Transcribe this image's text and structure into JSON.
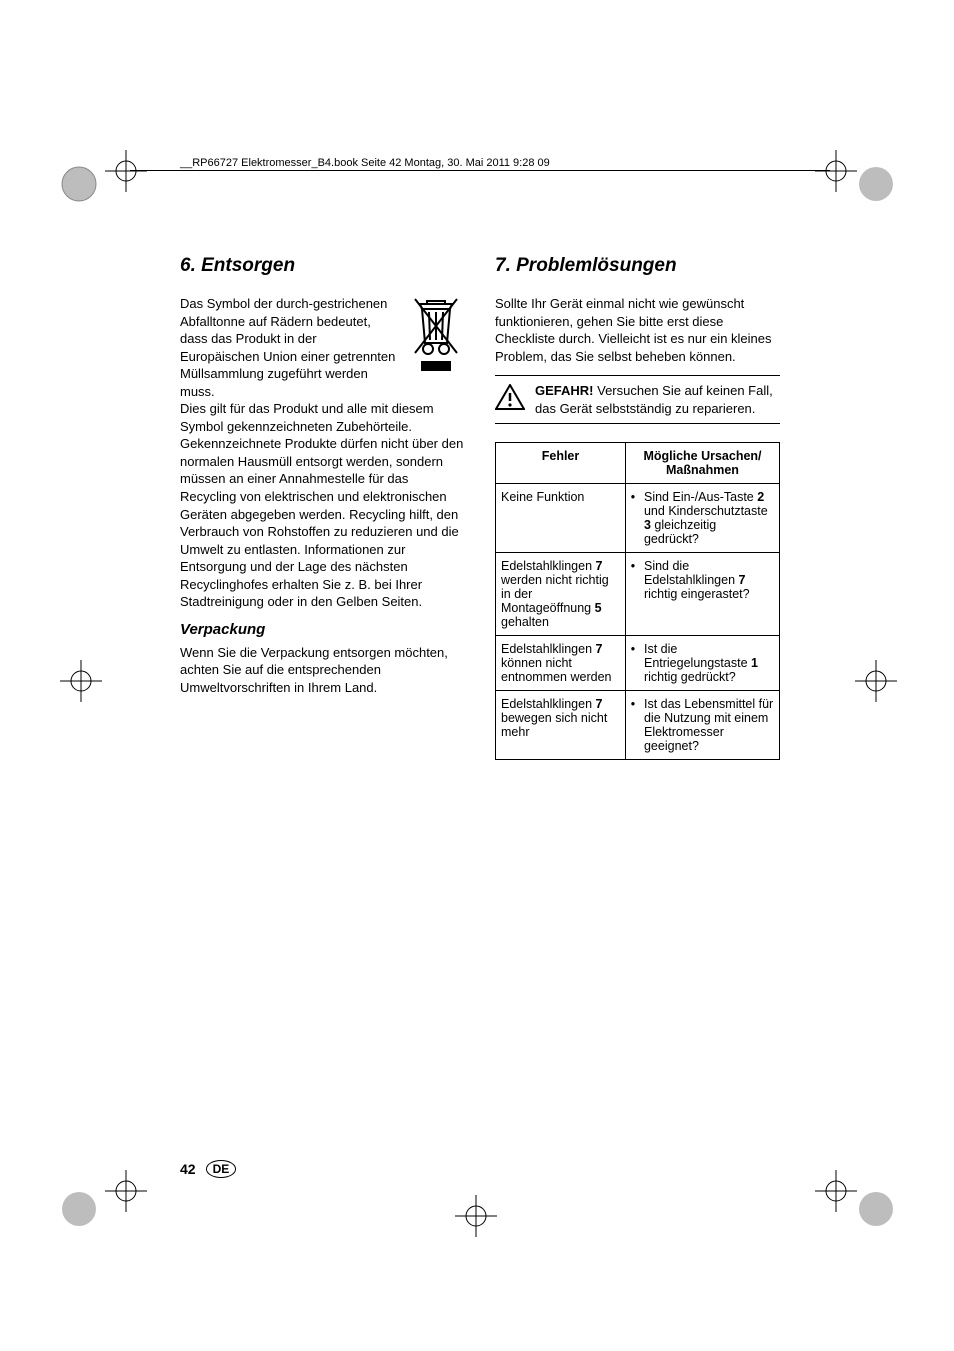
{
  "header": {
    "runhead": "__RP66727 Elektromesser_B4.book  Seite 42  Montag, 30. Mai 2011  9:28 09"
  },
  "left": {
    "heading": "6.   Entsorgen",
    "para1": "Das Symbol der durch-gestrichenen Abfalltonne auf Rädern bedeutet, dass das Produkt in der Europäischen Union einer getrennten Müllsammlung zugeführt werden muss.",
    "para2": "Dies gilt für das Produkt und alle mit diesem Symbol gekennzeichneten Zubehörteile. Gekennzeichnete Produkte dürfen nicht über den normalen Hausmüll entsorgt werden, sondern müssen an einer Annahmestelle für das Recycling von elektrischen und elektronischen Geräten abgegeben werden. Recycling hilft, den Verbrauch von Rohstoffen zu reduzieren und die Umwelt zu entlasten. Informationen zur Entsorgung und der Lage des nächsten Recyclinghofes erhalten Sie z. B. bei Ihrer Stadtreinigung oder in den Gelben Seiten.",
    "subheading": "Verpackung",
    "para3": "Wenn Sie die Verpackung entsorgen möchten, achten Sie auf die entsprechenden Umweltvorschriften in Ihrem Land."
  },
  "right": {
    "heading": "7.   Problemlösungen",
    "intro": "Sollte Ihr Gerät einmal nicht wie gewünscht funktionieren, gehen Sie bitte erst diese Checkliste durch. Vielleicht ist es nur ein kleines Problem, das Sie selbst beheben können.",
    "warning_bold": "GEFAHR!",
    "warning_text": " Versuchen Sie auf keinen Fall, das Gerät selbstständig zu reparieren.",
    "table": {
      "col1_header": "Fehler",
      "col2_header": "Mögliche Ursachen/\nMaßnahmen",
      "rows": [
        {
          "fault_pre": "Keine Funktion",
          "cause_parts": [
            "Sind Ein-/Aus-Taste ",
            "2",
            " und Kinderschutztaste ",
            "3",
            " gleichzeitig gedrückt?"
          ]
        },
        {
          "fault_parts": [
            "Edelstahlklingen ",
            "7",
            " werden nicht richtig in der Montageöffnung ",
            "5",
            " gehalten"
          ],
          "cause_parts": [
            "Sind die Edelstahlklingen ",
            "7",
            " richtig eingerastet?"
          ]
        },
        {
          "fault_parts": [
            "Edelstahlklingen ",
            "7",
            " können nicht entnommen werden"
          ],
          "cause_parts": [
            "Ist die Entriegelungstaste ",
            "1",
            " richtig gedrückt?"
          ]
        },
        {
          "fault_parts": [
            "Edelstahlklingen ",
            "7",
            " bewegen sich nicht mehr"
          ],
          "cause_parts": [
            "Ist das Lebensmittel für die Nutzung mit einem Elektromesser geeignet?"
          ]
        }
      ]
    }
  },
  "footer": {
    "page": "42",
    "lang": "DE"
  },
  "colors": {
    "text": "#000000",
    "background": "#ffffff"
  }
}
